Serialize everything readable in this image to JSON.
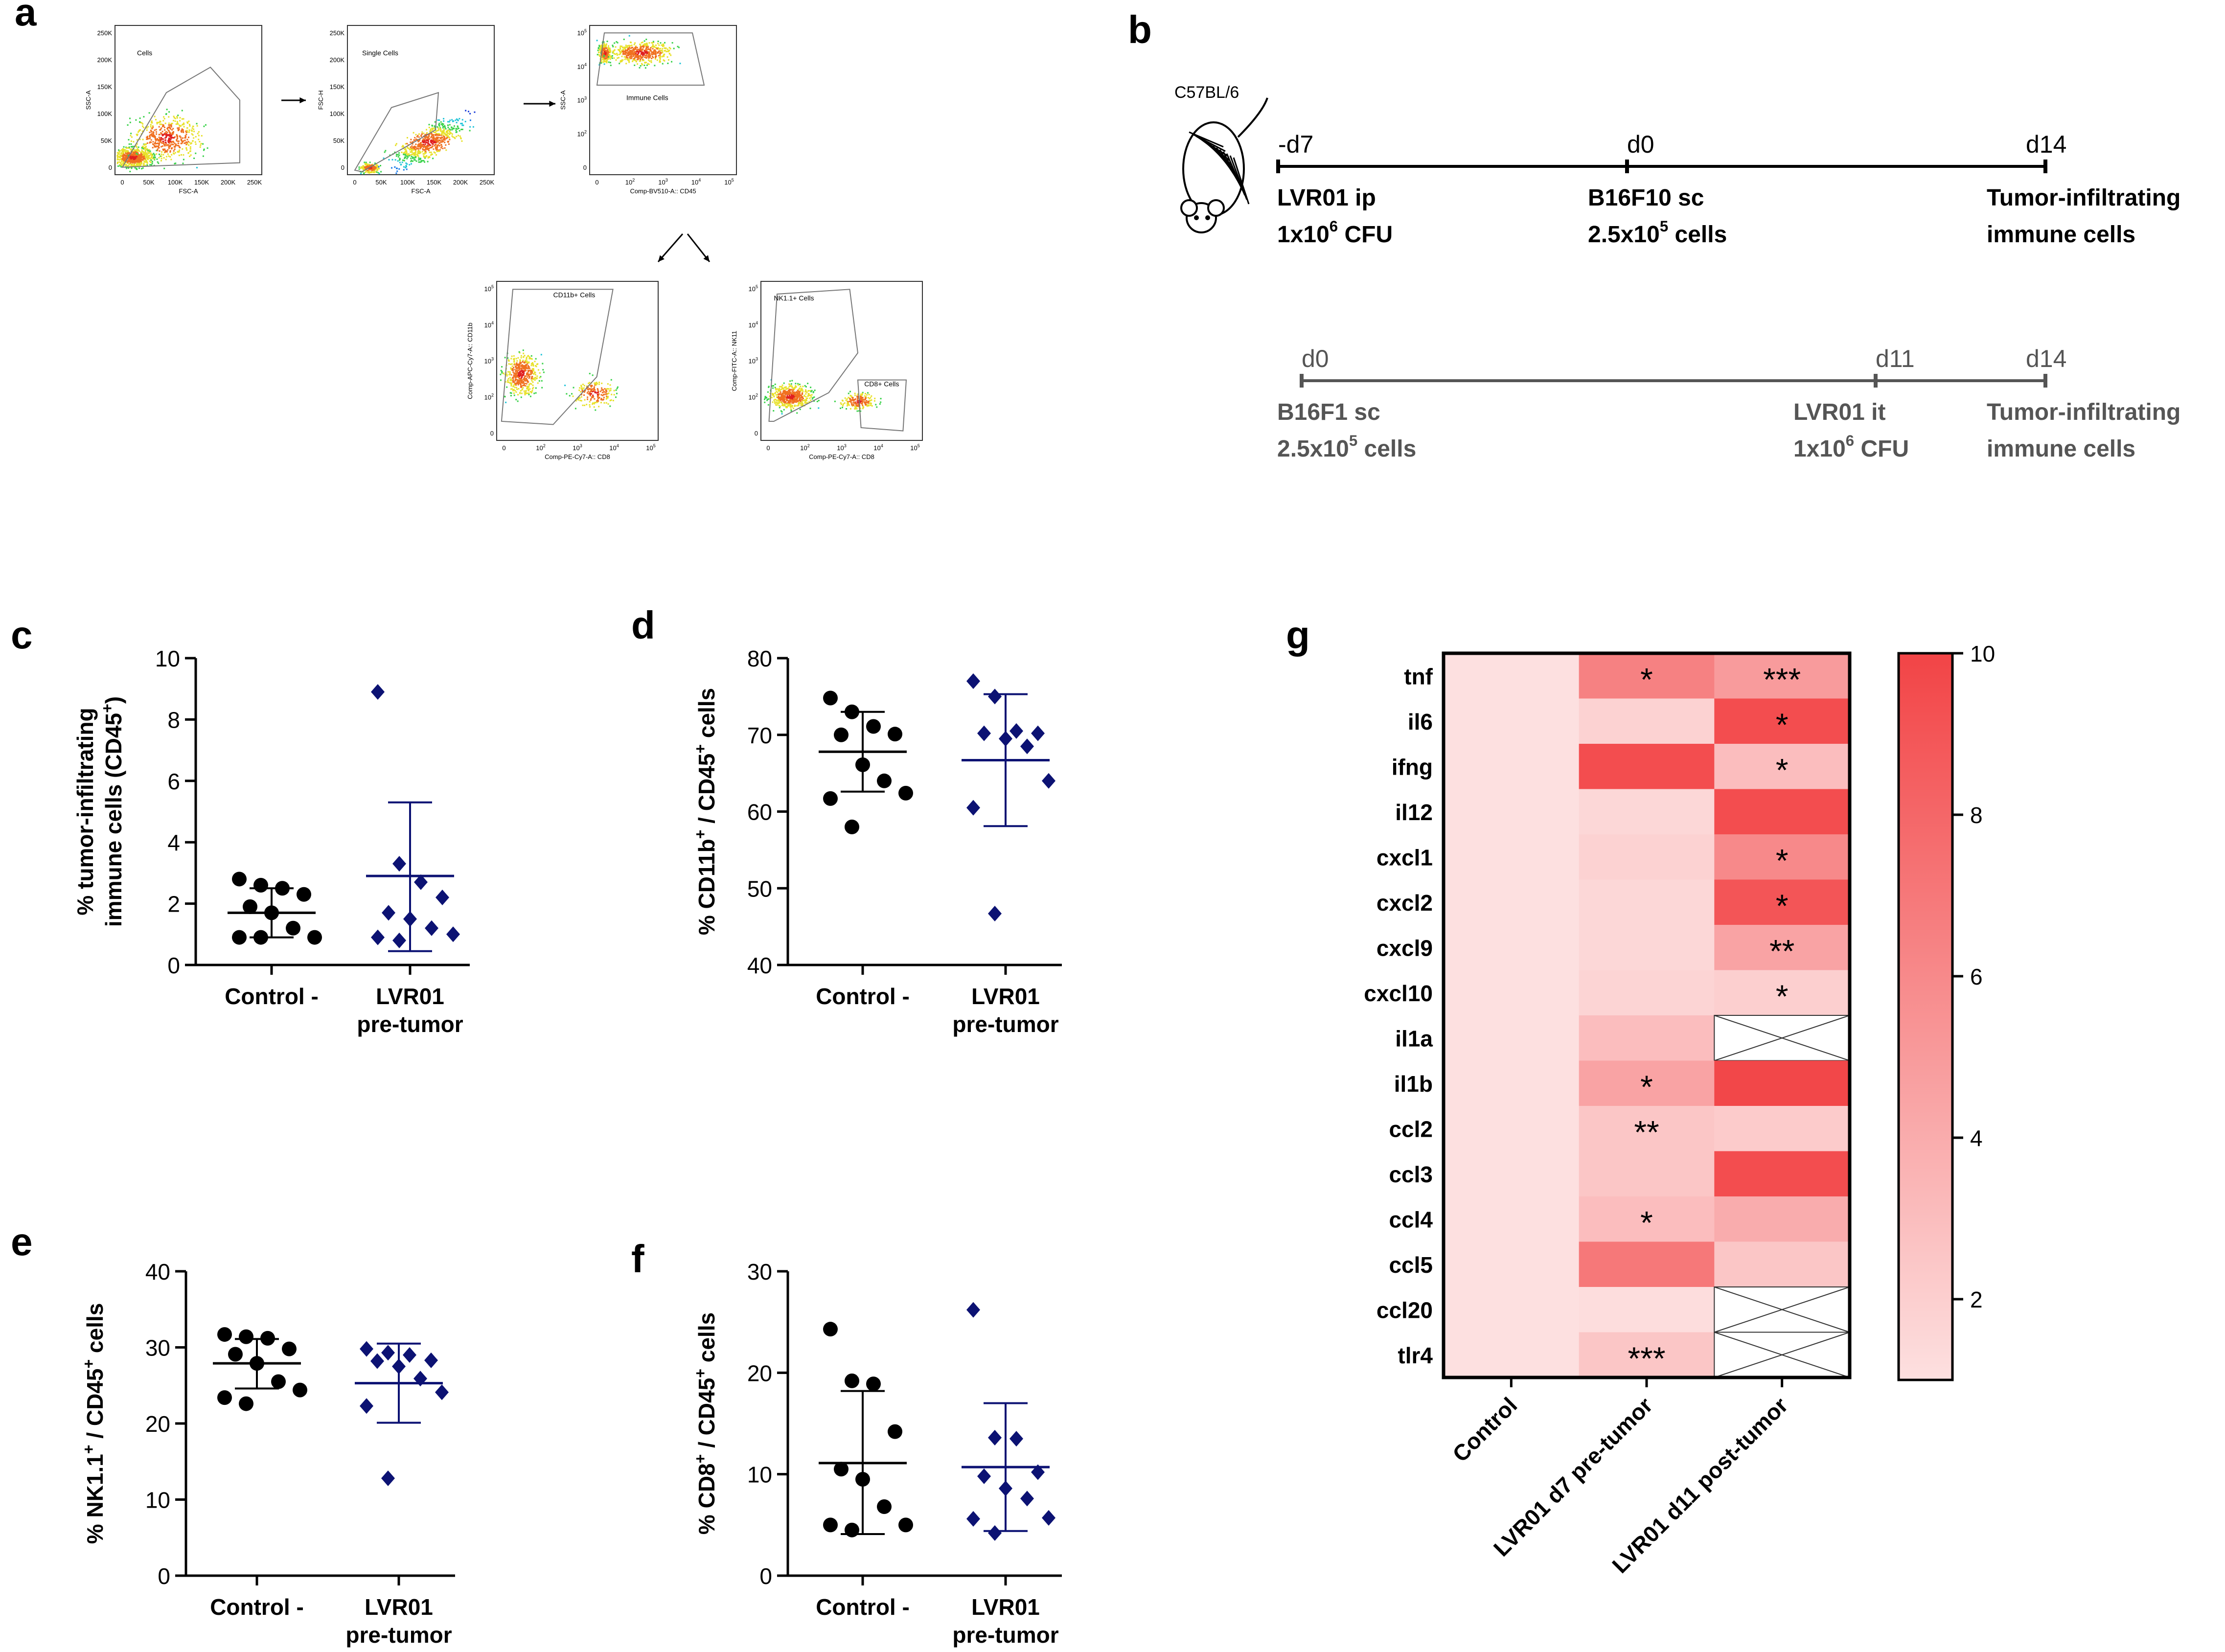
{
  "colors": {
    "control": "#000000",
    "lvr": "#0c1273",
    "heat_low": "#fde0e0",
    "heat_high": "#f24446",
    "timeline_top": "#000000",
    "timeline_bottom": "#555555",
    "flow": "#1a4fd6"
  },
  "panels": {
    "a": {
      "label": "a",
      "plots": [
        {
          "gate": "Cells",
          "xlabel": "FSC-A",
          "ylabel": "SSC-A",
          "yticks": [
            "250K",
            "200K",
            "150K",
            "100K",
            "50K",
            "0"
          ],
          "xticks": [
            "0",
            "50K",
            "100K",
            "150K",
            "200K",
            "250K"
          ]
        },
        {
          "gate": "Single Cells",
          "xlabel": "FSC-A",
          "ylabel": "FSC-H",
          "yticks": [
            "250K",
            "200K",
            "150K",
            "100K",
            "50K",
            "0"
          ],
          "xticks": [
            "0",
            "50K",
            "100K",
            "150K",
            "200K",
            "250K"
          ]
        },
        {
          "gate": "Immune Cells",
          "xlabel": "Comp-BV510-A:: CD45",
          "ylabel": "SSC-A",
          "yticks": [
            "10^5",
            "10^4",
            "10^3",
            "10^2",
            "0"
          ],
          "xticks": [
            "0",
            "10^2",
            "10^3",
            "10^4",
            "10^5"
          ]
        },
        {
          "gate": "CD11b+ Cells",
          "xlabel": "Comp-PE-Cy7-A:: CD8",
          "ylabel": "Comp-APC-Cy7-A:: CD11b",
          "yticks": [
            "10^5",
            "10^4",
            "10^3",
            "10^2",
            "0"
          ],
          "xticks": [
            "0",
            "10^2",
            "10^3",
            "10^4",
            "10^5"
          ]
        },
        {
          "gate": "NK1.1+ Cells",
          "gate2": "CD8+ Cells",
          "xlabel": "Comp-PE-Cy7-A:: CD8",
          "ylabel": "Comp-FITC-A:: NK11",
          "yticks": [
            "10^5",
            "10^4",
            "10^3",
            "10^2",
            "0"
          ],
          "xticks": [
            "0",
            "10^2",
            "10^3",
            "10^4",
            "10^5"
          ]
        }
      ]
    },
    "b": {
      "label": "b",
      "mouse": "C57BL/6",
      "timeline1": {
        "ticks": [
          "-d7",
          "d0",
          "d14"
        ],
        "events": [
          {
            "line1": "LVR01 ip",
            "line2": "1x10",
            "sup": "6",
            "line2b": " CFU"
          },
          {
            "line1": "B16F10 sc",
            "line2": "2.5x10",
            "sup": "5",
            "line2b": " cells"
          },
          {
            "line1": "Tumor-infiltrating",
            "line2": "immune cells",
            "sup": "",
            "line2b": ""
          }
        ]
      },
      "timeline2": {
        "ticks": [
          "d0",
          "d11",
          "d14"
        ],
        "events": [
          {
            "line1": "B16F1 sc",
            "line2": "2.5x10",
            "sup": "5",
            "line2b": " cells"
          },
          {
            "line1": "LVR01 it",
            "line2": "1x10",
            "sup": "6",
            "line2b": " CFU"
          },
          {
            "line1": "Tumor-infiltrating",
            "line2": "immune cells",
            "sup": "",
            "line2b": ""
          }
        ]
      }
    },
    "g": {
      "label": "g"
    }
  },
  "chart_data": [
    {
      "panel": "c",
      "type": "scatter",
      "ylabel_line1": "% tumor-infiltrating",
      "ylabel_line2": "immune cells (CD45",
      "ylabel_sup": "+",
      "ylabel_end": ")",
      "ylim": [
        0,
        10
      ],
      "yticks": [
        0,
        2,
        4,
        6,
        8,
        10
      ],
      "groups": [
        {
          "name": "Control -",
          "name2": "",
          "marker": "circle",
          "values": [
            2.8,
            2.6,
            2.5,
            2.3,
            1.9,
            1.7,
            1.2,
            0.9,
            0.9,
            0.9
          ],
          "mean": 1.7,
          "sd_low": 0.9,
          "sd_high": 2.5
        },
        {
          "name": "LVR01",
          "name2": "pre-tumor",
          "marker": "diamond",
          "values": [
            8.9,
            3.3,
            2.7,
            2.2,
            1.7,
            1.5,
            1.2,
            1.0,
            0.9,
            0.8
          ],
          "mean": 2.9,
          "sd_low": 0.45,
          "sd_high": 5.3
        }
      ]
    },
    {
      "panel": "d",
      "type": "scatter",
      "ylabel_line1": "% CD11b",
      "ylabel_sup1": "+",
      "ylabel_mid": " / CD45",
      "ylabel_sup2": "+",
      "ylabel_end": " cells",
      "ylim": [
        40,
        80
      ],
      "yticks": [
        40,
        50,
        60,
        70,
        80
      ],
      "groups": [
        {
          "name": "Control -",
          "name2": "",
          "marker": "circle",
          "values": [
            74.8,
            73.0,
            71.1,
            70.1,
            70.0,
            66.1,
            64.0,
            62.4,
            61.7,
            58.0
          ],
          "mean": 67.8,
          "sd_low": 62.6,
          "sd_high": 73.0
        },
        {
          "name": "LVR01",
          "name2": "pre-tumor",
          "marker": "diamond",
          "values": [
            77.0,
            75.0,
            70.5,
            70.2,
            70.2,
            69.5,
            68.5,
            64.0,
            60.5,
            46.7
          ],
          "mean": 66.7,
          "sd_low": 58.1,
          "sd_high": 75.3
        }
      ]
    },
    {
      "panel": "e",
      "type": "scatter",
      "ylabel_line1": "% NK1.1",
      "ylabel_sup1": "+",
      "ylabel_mid": " / CD45",
      "ylabel_sup2": "+",
      "ylabel_end": " cells",
      "ylim": [
        0,
        40
      ],
      "yticks": [
        0,
        10,
        20,
        30,
        40
      ],
      "groups": [
        {
          "name": "Control -",
          "name2": "",
          "marker": "circle",
          "values": [
            31.7,
            31.4,
            31.2,
            29.8,
            29.1,
            27.9,
            25.5,
            24.4,
            23.4,
            22.6
          ],
          "mean": 27.9,
          "sd_low": 24.6,
          "sd_high": 31.1
        },
        {
          "name": "LVR01",
          "name2": "pre-tumor",
          "marker": "diamond",
          "values": [
            29.8,
            29.3,
            29.0,
            28.3,
            28.2,
            27.5,
            25.9,
            24.1,
            22.3,
            12.8
          ],
          "mean": 25.3,
          "sd_low": 20.1,
          "sd_high": 30.5
        }
      ]
    },
    {
      "panel": "f",
      "type": "scatter",
      "ylabel_line1": "% CD8",
      "ylabel_sup1": "+",
      "ylabel_mid": " / CD45",
      "ylabel_sup2": "+",
      "ylabel_end": " cells",
      "ylim": [
        0,
        30
      ],
      "yticks": [
        0,
        10,
        20,
        30
      ],
      "groups": [
        {
          "name": "Control -",
          "name2": "",
          "marker": "circle",
          "values": [
            24.3,
            19.2,
            18.9,
            14.2,
            10.5,
            9.5,
            6.8,
            5.0,
            5.0,
            4.5
          ],
          "mean": 11.1,
          "sd_low": 4.1,
          "sd_high": 18.2
        },
        {
          "name": "LVR01",
          "name2": "pre-tumor",
          "marker": "diamond",
          "values": [
            26.2,
            13.6,
            13.5,
            10.2,
            9.8,
            8.6,
            7.6,
            5.7,
            5.6,
            4.2
          ],
          "mean": 10.7,
          "sd_low": 4.4,
          "sd_high": 17.0
        }
      ]
    },
    {
      "panel": "g",
      "type": "heatmap",
      "genes": [
        "tnf",
        "il6",
        "ifng",
        "il12",
        "cxcl1",
        "cxcl2",
        "cxcl9",
        "cxcl10",
        "il1a",
        "il1b",
        "ccl2",
        "ccl3",
        "ccl4",
        "ccl5",
        "ccl20",
        "tlr4"
      ],
      "columns": [
        "Control",
        "LVR01 d7 pre-tumor",
        "LVR01 d11 post-tumor"
      ],
      "values": [
        [
          1,
          6.5,
          5.0
        ],
        [
          1,
          1.8,
          9.5
        ],
        [
          1,
          9.5,
          3.0
        ],
        [
          1,
          1.5,
          9.5
        ],
        [
          1,
          1.8,
          6.0
        ],
        [
          1,
          1.5,
          9.0
        ],
        [
          1,
          1.5,
          4.5
        ],
        [
          1,
          1.7,
          2.0
        ],
        [
          1,
          3.0,
          null
        ],
        [
          1,
          4.5,
          9.8
        ],
        [
          1,
          2.5,
          2.2
        ],
        [
          1,
          2.5,
          9.5
        ],
        [
          1,
          3.0,
          4.0
        ],
        [
          1,
          7.0,
          2.5
        ],
        [
          1,
          1.2,
          null
        ],
        [
          1,
          2.5,
          null
        ]
      ],
      "stars": [
        [
          "",
          "*",
          "***"
        ],
        [
          "",
          "",
          "*"
        ],
        [
          "",
          "",
          "*"
        ],
        [
          "",
          "",
          ""
        ],
        [
          "",
          "",
          "*"
        ],
        [
          "",
          "",
          "*"
        ],
        [
          "",
          "",
          "**"
        ],
        [
          "",
          "",
          "*"
        ],
        [
          "",
          "",
          ""
        ],
        [
          "",
          "*",
          ""
        ],
        [
          "",
          "**",
          ""
        ],
        [
          "",
          "",
          ""
        ],
        [
          "",
          "*",
          ""
        ],
        [
          "",
          "",
          ""
        ],
        [
          "",
          "",
          ""
        ],
        [
          "",
          "***",
          ""
        ]
      ],
      "colorbar": {
        "min": 1,
        "max": 10,
        "ticks": [
          2,
          4,
          6,
          8,
          10
        ]
      }
    }
  ]
}
